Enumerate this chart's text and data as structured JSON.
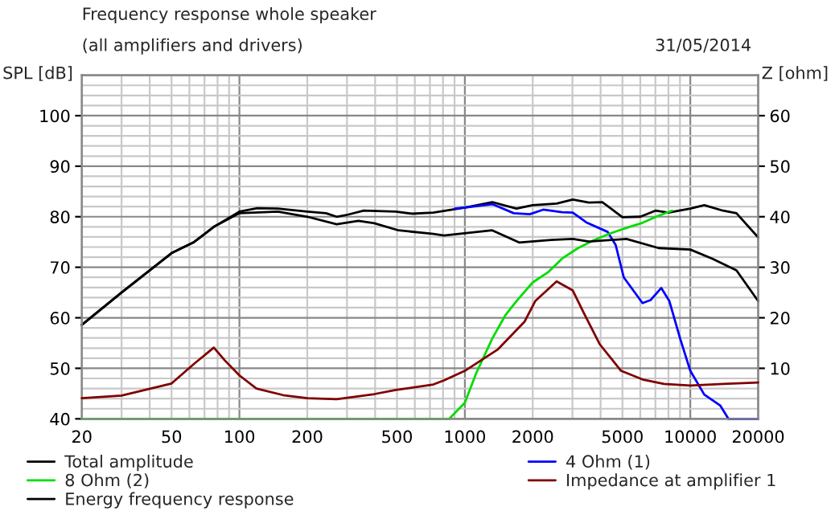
{
  "chart_data": {
    "type": "line",
    "title": "Frequency response whole speaker",
    "subtitle": "(all amplifiers and drivers)",
    "annotations": [
      "31/05/2014"
    ],
    "ylabel": "SPL [dB]",
    "y2label": "Z [ohm]",
    "log": "x",
    "grid": true,
    "legend": "bottom",
    "line_style": "solid",
    "marker": "none",
    "xlim": [
      20,
      20000
    ],
    "xticks": [
      20,
      50,
      100,
      200,
      500,
      1000,
      2000,
      5000,
      10000,
      20000
    ],
    "ylim": [
      40,
      108
    ],
    "yticks": [
      40,
      50,
      60,
      70,
      80,
      90,
      100
    ],
    "y2lim": [
      0,
      68
    ],
    "y2ticks": [
      10,
      20,
      30,
      40,
      50,
      60
    ],
    "series": [
      {
        "name": "Total amplitude",
        "color": "#000000",
        "x": [
          20,
          30,
          50,
          63,
          77,
          100,
          120,
          148,
          200,
          242,
          270,
          302,
          356,
          494,
          582,
          725,
          1000,
          1323,
          1693,
          2000,
          2553,
          3011,
          3548,
          4070,
          5000,
          6000,
          7000,
          8000,
          10000,
          11533,
          13969,
          16021,
          20000
        ],
        "values": [
          58.6,
          65,
          72.8,
          75,
          78,
          81,
          81.7,
          81.6,
          81,
          80.7,
          80,
          80.4,
          81.2,
          81,
          80.6,
          80.8,
          81.8,
          82.9,
          81.6,
          82.3,
          82.6,
          83.4,
          82.8,
          82.9,
          79.9,
          80,
          81.2,
          80.8,
          81.6,
          82.3,
          81.2,
          80.7,
          75.9
        ]
      },
      {
        "name": "4 Ohm (1)",
        "color": "#0000ff",
        "x": [
          901,
          1000,
          1323,
          1647,
          1941,
          2226,
          2698,
          3011,
          3452,
          4298,
          4667,
          5068,
          6138,
          6666,
          7436,
          8075,
          9012,
          10000,
          11533,
          13593,
          14757,
          20000
        ],
        "values": [
          81.6,
          81.8,
          82.5,
          80.7,
          80.5,
          81.4,
          80.9,
          80.8,
          78.9,
          77,
          74.4,
          68,
          62.9,
          63.5,
          65.9,
          63.3,
          55.9,
          49.5,
          44.8,
          42.6,
          40,
          40
        ]
      },
      {
        "name": "8 Ohm (2)",
        "color": "#00dd00",
        "x": [
          20,
          853,
          1000,
          1122,
          1323,
          1517,
          1693,
          2000,
          2352,
          2698,
          3180,
          3748,
          4416,
          5208,
          6138,
          7236,
          8299
        ],
        "values": [
          40,
          40,
          43.2,
          49,
          55.9,
          60.6,
          63.3,
          67,
          69.1,
          71.7,
          73.8,
          75.4,
          76.7,
          77.8,
          78.8,
          80.2,
          81.2
        ]
      },
      {
        "name": "Impedance at amplifier 1",
        "color": "#800000",
        "axis": "y2",
        "x": [
          20,
          30,
          50,
          63,
          77,
          86,
          100,
          119,
          156,
          200,
          270,
          397,
          494,
          725,
          807,
          1000,
          1397,
          1838,
          2051,
          2553,
          3011,
          3357,
          3959,
          4930,
          6138,
          7643,
          10000,
          13969,
          20000
        ],
        "values": [
          4.1,
          4.6,
          7,
          10.9,
          14.1,
          11.6,
          8.6,
          6,
          4.7,
          4.1,
          3.9,
          4.9,
          5.7,
          6.8,
          7.6,
          9.5,
          13.7,
          19.2,
          23.3,
          27.2,
          25.4,
          21.1,
          14.8,
          9.5,
          7.8,
          6.9,
          6.6,
          6.9,
          7.2
        ]
      },
      {
        "name": "Energy frequency response",
        "color": "#000000",
        "x": [
          20,
          30,
          50,
          63,
          77,
          100,
          148,
          200,
          270,
          337,
          397,
          508,
          725,
          807,
          1323,
          1740,
          2417,
          3011,
          3548,
          5208,
          7236,
          10000,
          12521,
          16021,
          20000
        ],
        "values": [
          58.6,
          65,
          72.8,
          75,
          78,
          80.7,
          81,
          80,
          78.5,
          79.2,
          78.7,
          77.3,
          76.6,
          76.3,
          77.3,
          74.9,
          75.4,
          75.6,
          75.1,
          75.6,
          73.8,
          73.5,
          71.7,
          69.4,
          63.3
        ]
      }
    ]
  }
}
